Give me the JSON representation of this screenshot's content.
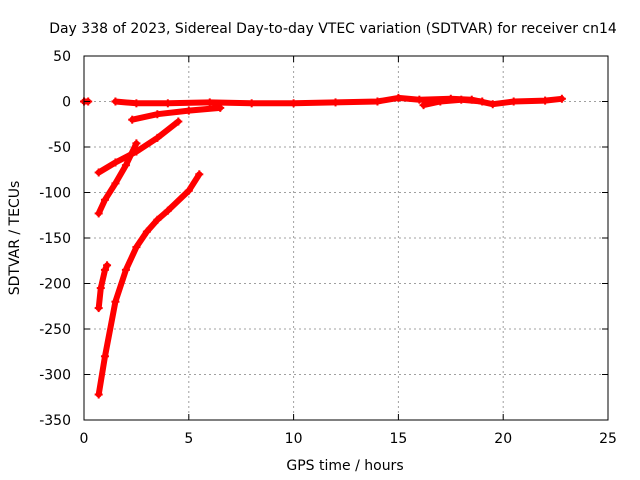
{
  "chart_data": {
    "type": "scatter",
    "title": "Day 338 of 2023, Sidereal Day-to-day VTEC variation (SDTVAR) for receiver cn14",
    "xlabel": "GPS time / hours",
    "ylabel": "SDTVAR / TECUs",
    "xlim": [
      0,
      25
    ],
    "ylim": [
      -350,
      50
    ],
    "xticks": [
      0,
      5,
      10,
      15,
      20,
      25
    ],
    "yticks": [
      50,
      0,
      -50,
      -100,
      -150,
      -200,
      -250,
      -300,
      -350
    ],
    "grid": true,
    "marker_color": "#ff0000",
    "series": [
      {
        "tracks": [
          [
            [
              0.0,
              0
            ],
            [
              0.2,
              0
            ]
          ],
          [
            [
              1.5,
              0
            ],
            [
              2.5,
              -2
            ],
            [
              4.0,
              -2
            ],
            [
              6.0,
              -1
            ],
            [
              8.0,
              -2
            ],
            [
              10.0,
              -2
            ],
            [
              12.0,
              -1
            ],
            [
              14.0,
              0
            ],
            [
              15.0,
              4
            ],
            [
              16.0,
              2
            ],
            [
              17.5,
              3
            ],
            [
              18.5,
              2
            ],
            [
              19.5,
              -3
            ],
            [
              20.5,
              0
            ],
            [
              22.0,
              1
            ],
            [
              22.8,
              3
            ]
          ],
          [
            [
              16.2,
              -4
            ],
            [
              17.0,
              0
            ],
            [
              18.0,
              2
            ],
            [
              19.0,
              0
            ]
          ],
          [
            [
              2.3,
              -20
            ],
            [
              3.5,
              -14
            ],
            [
              5.0,
              -10
            ],
            [
              6.5,
              -7
            ]
          ],
          [
            [
              0.7,
              -78
            ],
            [
              1.5,
              -67
            ],
            [
              2.5,
              -55
            ],
            [
              3.5,
              -40
            ],
            [
              4.5,
              -22
            ]
          ],
          [
            [
              0.7,
              -123
            ],
            [
              1.0,
              -108
            ],
            [
              1.5,
              -90
            ],
            [
              2.0,
              -70
            ],
            [
              2.5,
              -46
            ]
          ],
          [
            [
              0.7,
              -227
            ],
            [
              0.8,
              -205
            ],
            [
              1.0,
              -185
            ],
            [
              1.1,
              -180
            ]
          ],
          [
            [
              0.7,
              -322
            ],
            [
              1.0,
              -280
            ],
            [
              1.5,
              -220
            ],
            [
              2.0,
              -185
            ],
            [
              2.5,
              -160
            ],
            [
              3.0,
              -143
            ],
            [
              3.5,
              -130
            ],
            [
              4.0,
              -120
            ],
            [
              5.0,
              -98
            ],
            [
              5.5,
              -80
            ]
          ]
        ]
      }
    ]
  }
}
